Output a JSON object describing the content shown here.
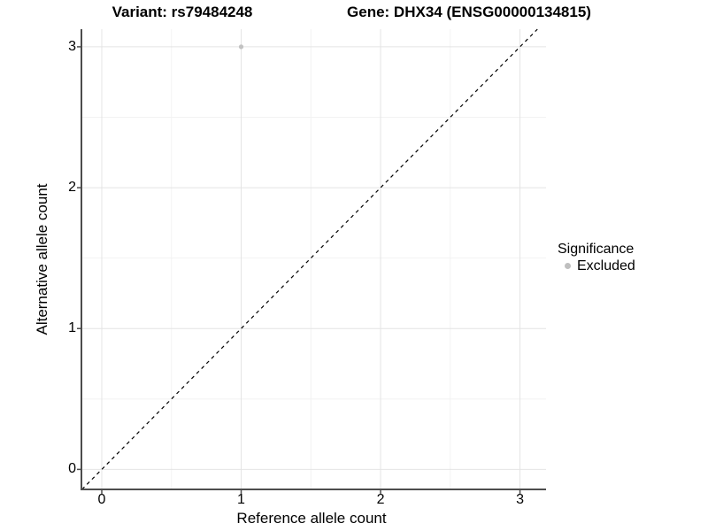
{
  "figure": {
    "titles": {
      "left": "Variant: rs79484248",
      "right": "Gene: DHX34 (ENSG00000134815)"
    }
  },
  "chart_data": {
    "type": "scatter",
    "title": "Variant: rs79484248   |   Gene: DHX34 (ENSG00000134815)",
    "xlabel": "Reference allele count",
    "ylabel": "Alternative allele count",
    "x_ticks": [
      0,
      1,
      2,
      3
    ],
    "y_ticks": [
      0,
      1,
      2,
      3
    ],
    "x_minor_ticks": [
      0.5,
      1.5,
      2.5
    ],
    "y_minor_ticks": [
      0.5,
      1.5,
      2.5
    ],
    "xlim": [
      -0.146,
      3.187
    ],
    "ylim": [
      -0.142,
      3.125
    ],
    "grid": true,
    "series": [
      {
        "name": "Excluded",
        "color": "#c2c2c2",
        "points": [
          {
            "x": 1,
            "y": 3
          }
        ]
      }
    ],
    "reference_line": {
      "kind": "identity",
      "style": "dashed",
      "color": "#000000"
    },
    "legend": {
      "title": "Significance",
      "position": "right",
      "entries": [
        {
          "label": "Excluded",
          "color": "#bfbfbf"
        }
      ]
    }
  },
  "colors": {
    "background": "#ffffff",
    "axis": "#4d4d4d",
    "grid_major": "#e4e4e4",
    "grid_minor": "#f2f2f2",
    "text": "#000000",
    "point": "#c2c2c2"
  }
}
